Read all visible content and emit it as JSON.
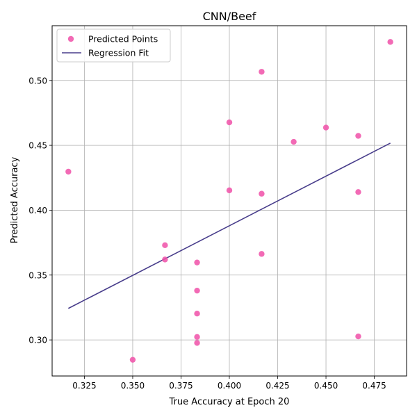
{
  "chart_data": {
    "type": "scatter",
    "title": "CNN/Beef",
    "xlabel": "True Accuracy at Epoch 20",
    "ylabel": "Predicted Accuracy",
    "xlim": [
      0.3083,
      0.4917
    ],
    "ylim": [
      0.2722,
      0.5422
    ],
    "xticks": [
      0.325,
      0.35,
      0.375,
      0.4,
      0.425,
      0.45,
      0.475
    ],
    "xtick_labels": [
      "0.325",
      "0.350",
      "0.375",
      "0.400",
      "0.425",
      "0.450",
      "0.475"
    ],
    "yticks": [
      0.3,
      0.35,
      0.4,
      0.45,
      0.5
    ],
    "ytick_labels": [
      "0.30",
      "0.35",
      "0.40",
      "0.45",
      "0.50"
    ],
    "grid": true,
    "legend_position": "top-left",
    "series": [
      {
        "name": "Predicted Points",
        "kind": "scatter",
        "color": "#f050a8",
        "points": [
          [
            0.3167,
            0.4297
          ],
          [
            0.35,
            0.2847
          ],
          [
            0.3667,
            0.373
          ],
          [
            0.3667,
            0.362
          ],
          [
            0.3833,
            0.3597
          ],
          [
            0.3833,
            0.338
          ],
          [
            0.3833,
            0.3203
          ],
          [
            0.3833,
            0.3023
          ],
          [
            0.3833,
            0.2977
          ],
          [
            0.4,
            0.4677
          ],
          [
            0.4,
            0.4153
          ],
          [
            0.4167,
            0.5067
          ],
          [
            0.4167,
            0.4127
          ],
          [
            0.4167,
            0.3663
          ],
          [
            0.4333,
            0.4527
          ],
          [
            0.45,
            0.4637
          ],
          [
            0.4667,
            0.4573
          ],
          [
            0.4667,
            0.414
          ],
          [
            0.4667,
            0.3027
          ],
          [
            0.4833,
            0.5297
          ]
        ]
      },
      {
        "name": "Regression Fit",
        "kind": "line",
        "color": "#483d8b",
        "points": [
          [
            0.3167,
            0.3243
          ],
          [
            0.4833,
            0.4517
          ]
        ]
      }
    ]
  }
}
